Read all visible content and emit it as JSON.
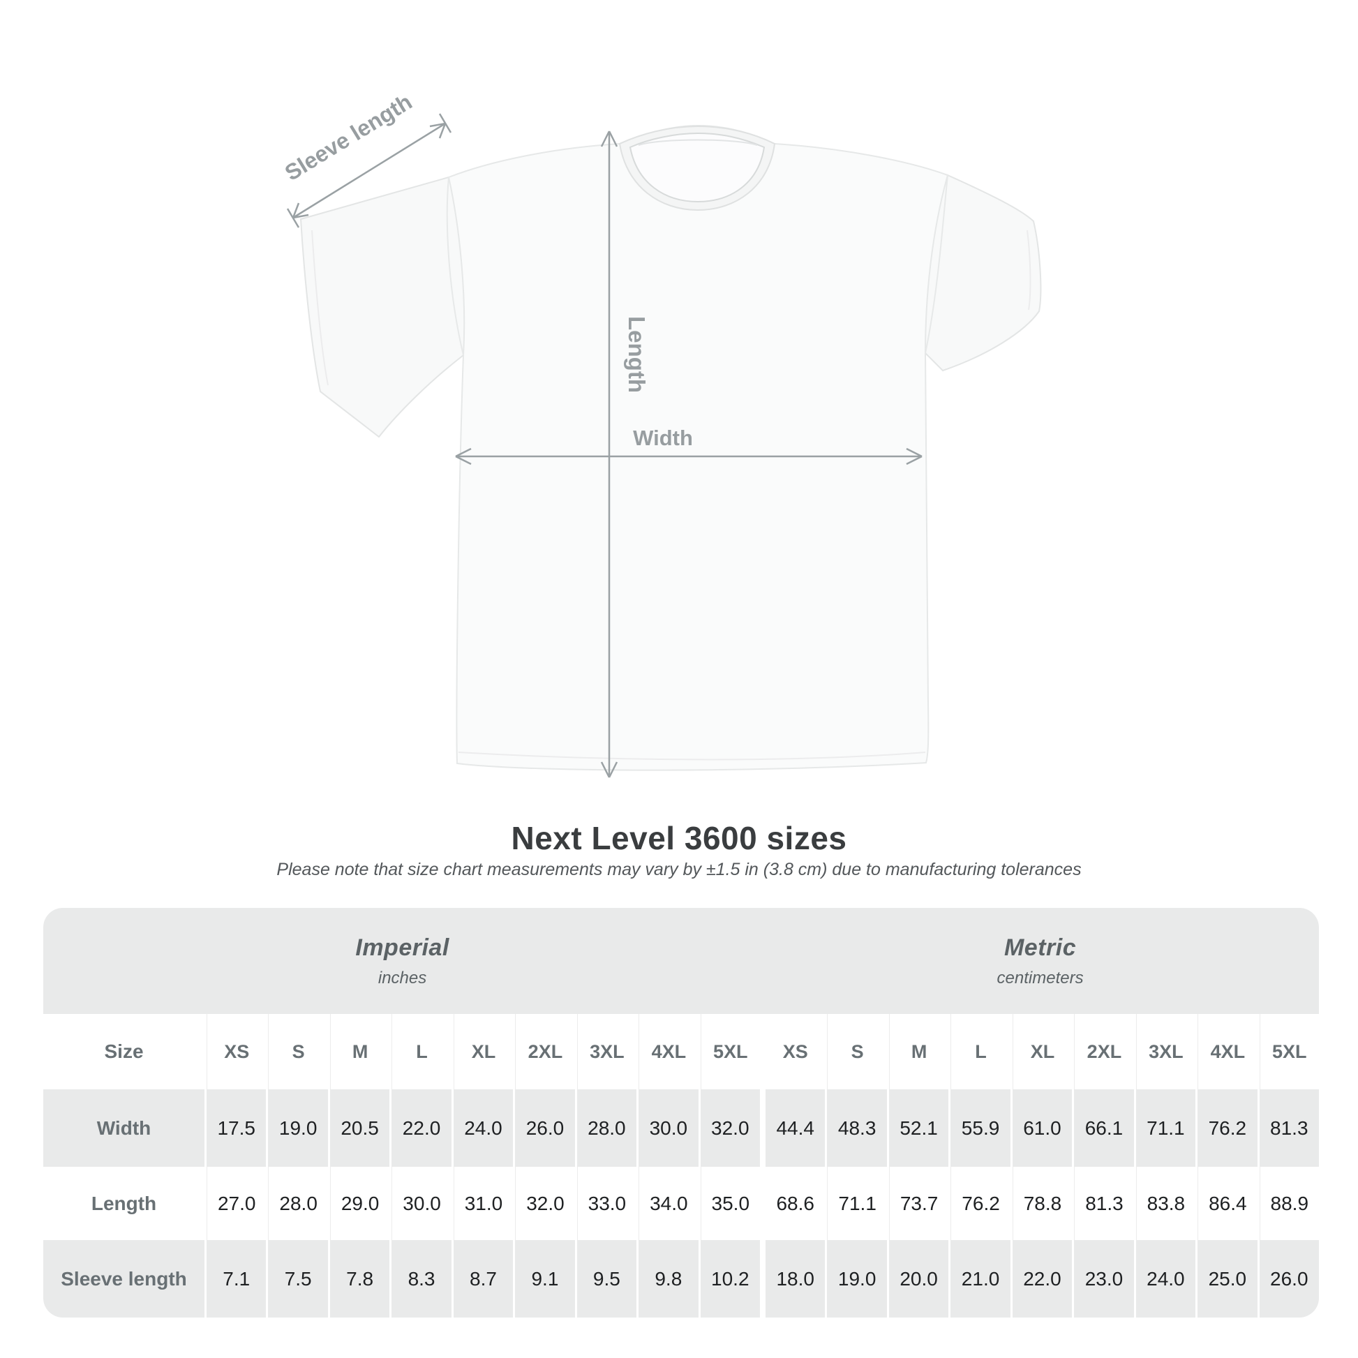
{
  "diagram": {
    "labels": {
      "sleeve_length": "Sleeve length",
      "length": "Length",
      "width": "Width"
    },
    "line_color": "#9aa1a4",
    "label_color": "#979da0",
    "shirt_fill": "#fafbfb",
    "shirt_edge": "#e3e5e5"
  },
  "title": "Next Level 3600 sizes",
  "subtitle": "Please note that size chart measurements may vary by ±1.5 in (3.8 cm) due to manufacturing tolerances",
  "table": {
    "sections": [
      {
        "label": "Imperial",
        "sublabel": "inches"
      },
      {
        "label": "Metric",
        "sublabel": "centimeters"
      }
    ],
    "size_header_label": "Size",
    "sizes": [
      "XS",
      "S",
      "M",
      "L",
      "XL",
      "2XL",
      "3XL",
      "4XL",
      "5XL"
    ],
    "rows": [
      {
        "label": "Width",
        "imperial": [
          "17.5",
          "19.0",
          "20.5",
          "22.0",
          "24.0",
          "26.0",
          "28.0",
          "30.0",
          "32.0"
        ],
        "metric": [
          "44.4",
          "48.3",
          "52.1",
          "55.9",
          "61.0",
          "66.1",
          "71.1",
          "76.2",
          "81.3"
        ]
      },
      {
        "label": "Length",
        "imperial": [
          "27.0",
          "28.0",
          "29.0",
          "30.0",
          "31.0",
          "32.0",
          "33.0",
          "34.0",
          "35.0"
        ],
        "metric": [
          "68.6",
          "71.1",
          "73.7",
          "76.2",
          "78.8",
          "81.3",
          "83.8",
          "86.4",
          "88.9"
        ]
      },
      {
        "label": "Sleeve length",
        "imperial": [
          "7.1",
          "7.5",
          "7.8",
          "8.3",
          "8.7",
          "9.1",
          "9.5",
          "9.8",
          "10.2"
        ],
        "metric": [
          "18.0",
          "19.0",
          "20.0",
          "21.0",
          "22.0",
          "23.0",
          "24.0",
          "25.0",
          "26.0"
        ]
      }
    ],
    "stripe_color": "#e9eaea",
    "value_color": "#1e2022",
    "label_color": "#687074"
  }
}
